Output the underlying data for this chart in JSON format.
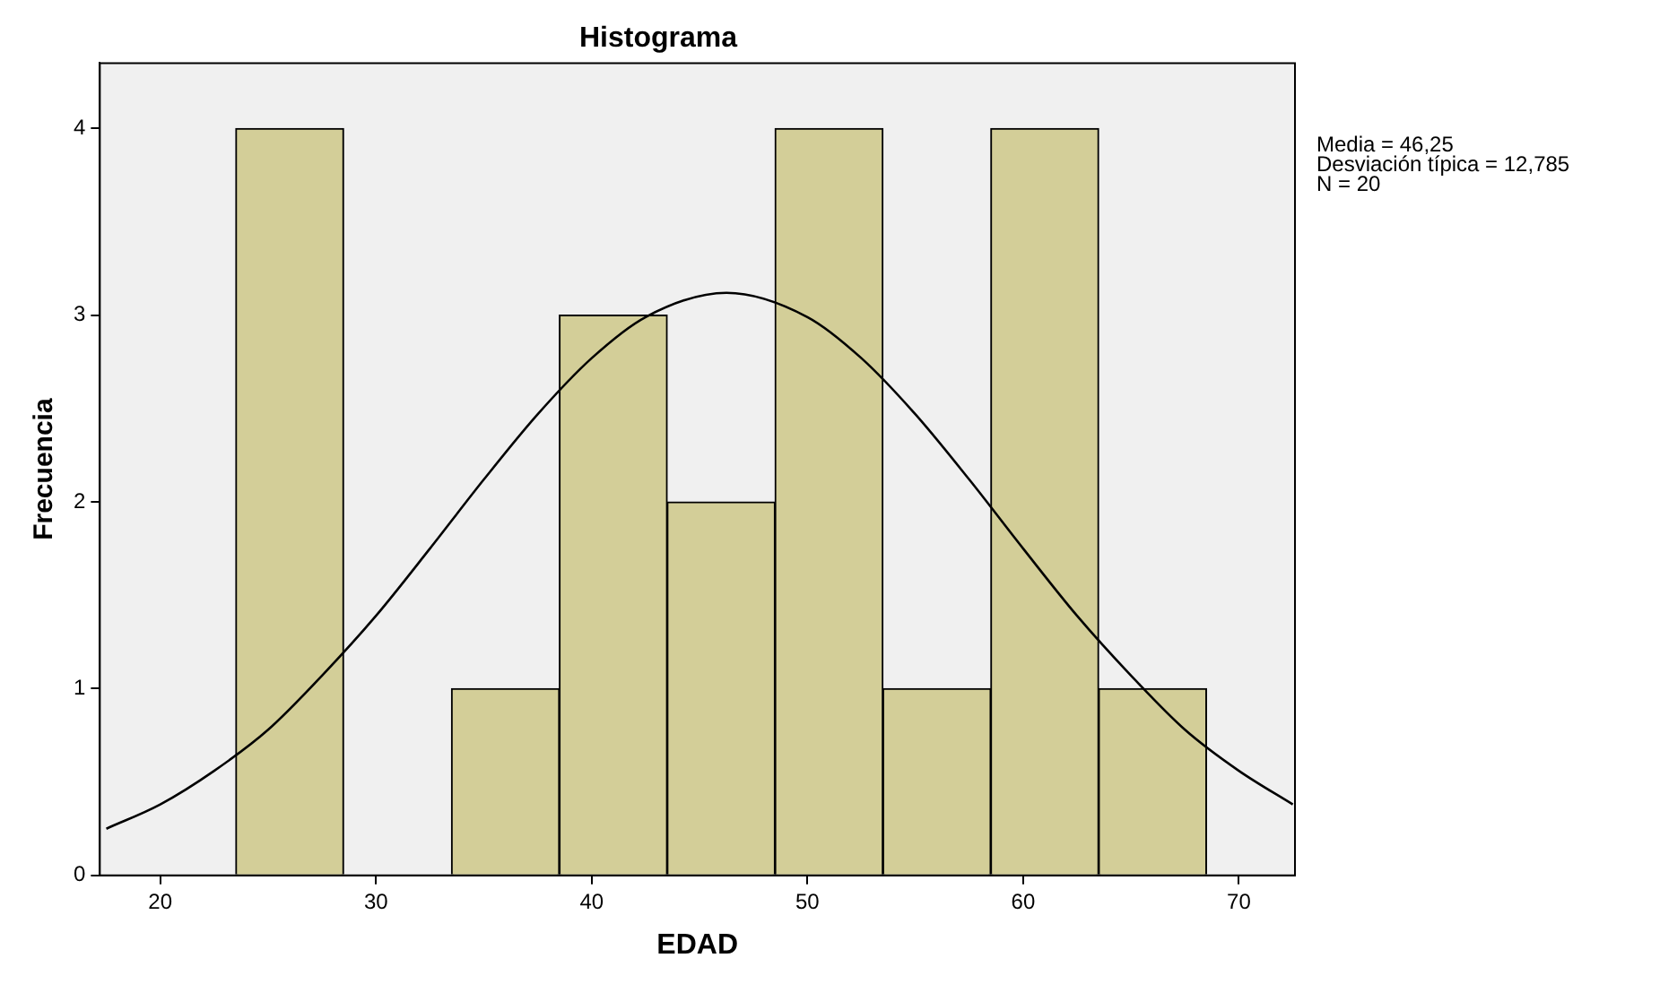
{
  "chart_data": {
    "type": "histogram",
    "title": "Histograma",
    "xlabel": "EDAD",
    "ylabel": "Frecuencia",
    "bins": [
      23.5,
      28.5,
      33.5,
      38.5,
      43.5,
      48.5,
      53.5,
      58.5,
      63.5,
      68.5
    ],
    "values": [
      4,
      0,
      1,
      3,
      2,
      4,
      1,
      4,
      1
    ],
    "color": "#d3ce98",
    "series": [
      {
        "type": "line",
        "color": "#000000",
        "x": [
          17.5,
          20,
          22.5,
          25,
          27.5,
          30,
          32.5,
          35,
          37.5,
          40,
          42.5,
          46.25,
          50,
          52.5,
          55,
          57.5,
          60,
          62.5,
          65,
          67.5,
          70,
          72.5
        ],
        "values": [
          0.25,
          0.38,
          0.56,
          0.78,
          1.07,
          1.39,
          1.75,
          2.12,
          2.47,
          2.77,
          2.99,
          3.12,
          2.99,
          2.77,
          2.47,
          2.12,
          1.75,
          1.39,
          1.07,
          0.78,
          0.56,
          0.38
        ]
      }
    ],
    "xlim": [
      17.2,
      72.6
    ],
    "ylim": [
      0,
      4.35
    ],
    "xticks": [
      20,
      30,
      40,
      50,
      60,
      70
    ],
    "yticks": [
      0,
      1,
      2,
      3,
      4
    ],
    "grid": false,
    "legend": false,
    "marker": "none",
    "annotations": [
      "Media = 46,25",
      "Desviación típica = 12,785",
      "N = 20"
    ]
  }
}
